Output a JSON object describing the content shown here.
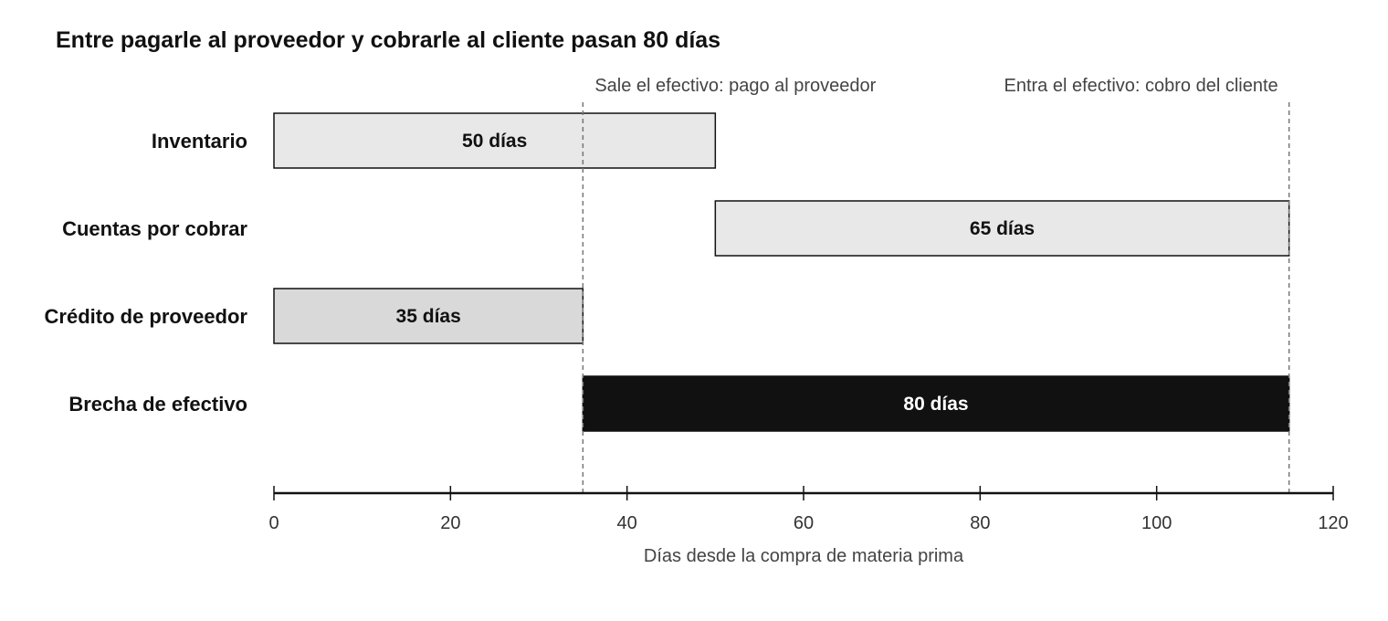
{
  "chart_data": {
    "type": "bar",
    "orientation": "horizontal",
    "title": "Entre pagarle al proveedor y cobrarle al cliente pasan 80 días",
    "xlabel": "Días desde la compra de materia prima",
    "ylabel": "",
    "xlim": [
      0,
      120
    ],
    "x_ticks": [
      0,
      20,
      40,
      60,
      80,
      100,
      120
    ],
    "grid": false,
    "legend": "none",
    "series": [
      {
        "category": "Inventario",
        "start": 0,
        "end": 50,
        "label": "50 días",
        "fill": "#e8e8e8",
        "text_color": "#111111"
      },
      {
        "category": "Cuentas por cobrar",
        "start": 50,
        "end": 115,
        "label": "65 días",
        "fill": "#e8e8e8",
        "text_color": "#111111"
      },
      {
        "category": "Crédito de proveedor",
        "start": 0,
        "end": 35,
        "label": "35 días",
        "fill": "#d9d9d9",
        "text_color": "#111111"
      },
      {
        "category": "Brecha de efectivo",
        "start": 35,
        "end": 115,
        "label": "80 días",
        "fill": "#111111",
        "text_color": "#ffffff"
      }
    ],
    "reference_lines": [
      {
        "x": 35,
        "label": "Sale el efectivo: pago al proveedor"
      },
      {
        "x": 115,
        "label": "Entra el efectivo: cobro del cliente"
      }
    ]
  },
  "colors": {
    "axis": "#111111",
    "reference_line": "#777777",
    "bar_stroke": "#111111"
  }
}
